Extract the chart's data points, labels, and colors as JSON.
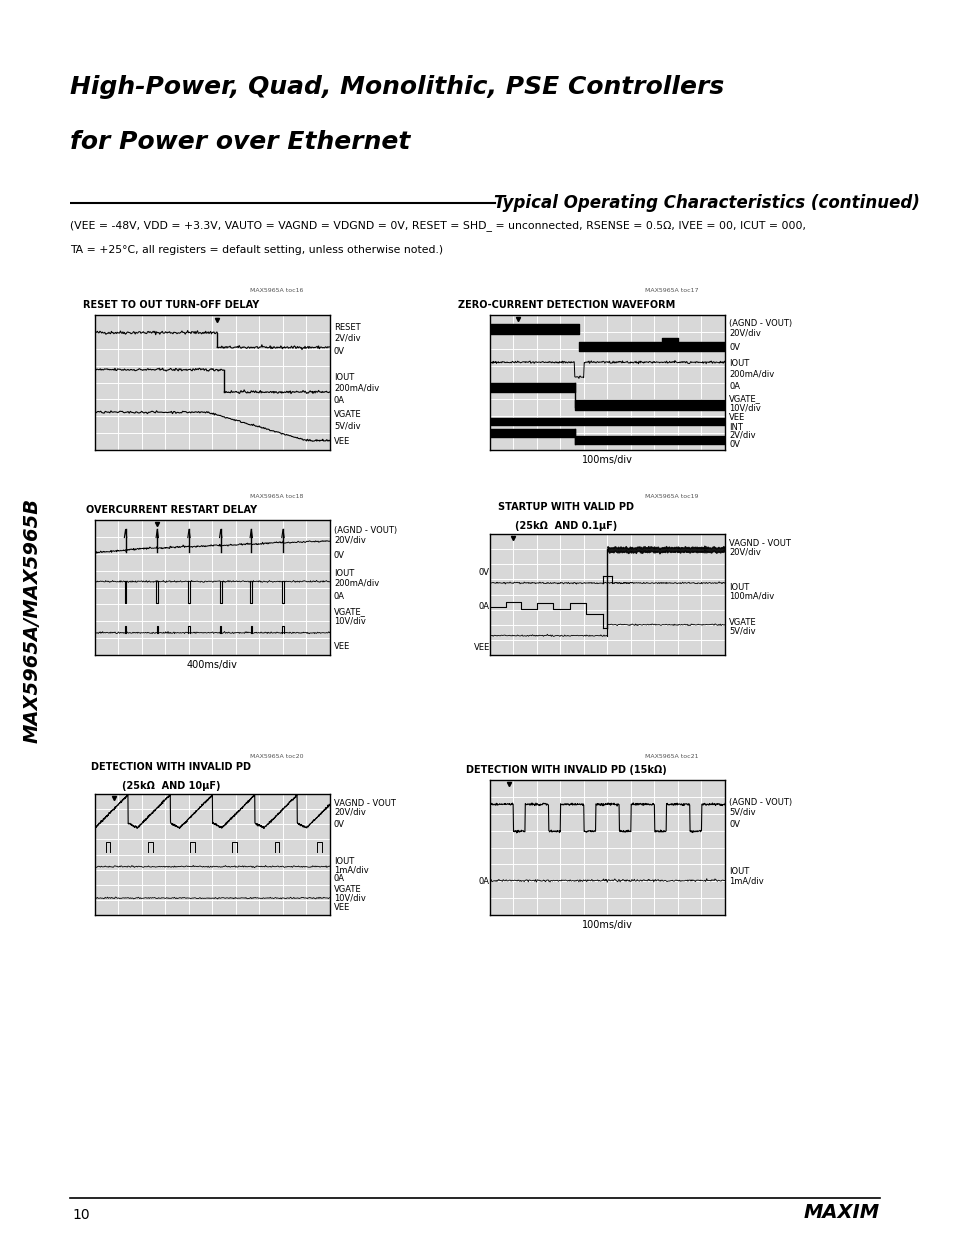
{
  "page_title_line1": "High-Power, Quad, Monolithic, PSE Controllers",
  "page_title_line2": "for Power over Ethernet",
  "section_title": "Typical Operating Characteristics (continued)",
  "conditions_line1": "(VEE = -48V, VDD = +3.3V, VAUTO = VAGND = VDGND = 0V, RESET = SHD_ = unconnected, RSENSE = 0.5Ω, IVEE = 00, ICUT = 000,",
  "conditions_line2": "TA = +25°C, all registers = default setting, unless otherwise noted.)",
  "side_label": "MAX5965A/MAX5965B",
  "page_number": "10",
  "logo_text": "MAXIM",
  "bg_color": "#ffffff",
  "plot_bg_color": "#d8d8d8",
  "grid_color": "#ffffff",
  "waveform_color": "#000000",
  "border_color": "#000000"
}
